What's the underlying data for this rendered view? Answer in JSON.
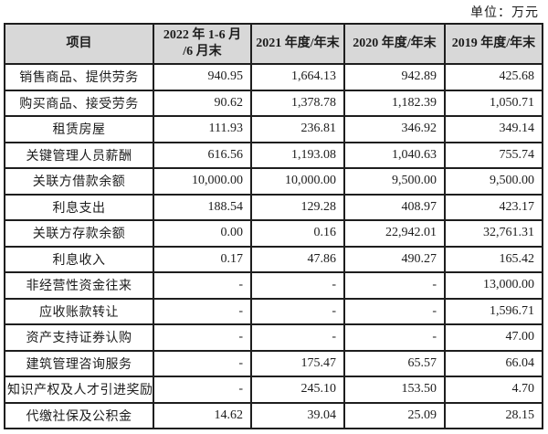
{
  "unit_label": "单位：万元",
  "colors": {
    "header_bg": "#d8d8d8",
    "border": "#1e1e1e",
    "text": "#1c1c1c"
  },
  "table": {
    "columns": [
      "项目",
      "2022 年 1-6 月\n/6 月末",
      "2021 年度/年末",
      "2020 年度/年末",
      "2019 年度/年末"
    ],
    "rows": [
      {
        "item": "销售商品、提供劳务",
        "values": [
          "940.95",
          "1,664.13",
          "942.89",
          "425.68"
        ]
      },
      {
        "item": "购买商品、接受劳务",
        "values": [
          "90.62",
          "1,378.78",
          "1,182.39",
          "1,050.71"
        ]
      },
      {
        "item": "租赁房屋",
        "values": [
          "111.93",
          "236.81",
          "346.92",
          "349.14"
        ]
      },
      {
        "item": "关键管理人员薪酬",
        "values": [
          "616.56",
          "1,193.08",
          "1,040.63",
          "755.74"
        ]
      },
      {
        "item": "关联方借款余额",
        "values": [
          "10,000.00",
          "10,000.00",
          "9,500.00",
          "9,500.00"
        ]
      },
      {
        "item": "利息支出",
        "values": [
          "188.54",
          "129.28",
          "408.97",
          "423.17"
        ]
      },
      {
        "item": "关联方存款余额",
        "values": [
          "0.00",
          "0.16",
          "22,942.01",
          "32,761.31"
        ]
      },
      {
        "item": "利息收入",
        "values": [
          "0.17",
          "47.86",
          "490.27",
          "165.42"
        ]
      },
      {
        "item": "非经营性资金往来",
        "values": [
          "-",
          "-",
          "-",
          "13,000.00"
        ]
      },
      {
        "item": "应收账款转让",
        "values": [
          "-",
          "-",
          "-",
          "1,596.71"
        ]
      },
      {
        "item": "资产支持证券认购",
        "values": [
          "-",
          "-",
          "-",
          "47.00"
        ]
      },
      {
        "item": "建筑管理咨询服务",
        "values": [
          "-",
          "175.47",
          "65.57",
          "66.04"
        ]
      },
      {
        "item": "知识产权及人才引进奖励",
        "values": [
          "-",
          "245.10",
          "153.50",
          "4.70"
        ]
      },
      {
        "item": "代缴社保及公积金",
        "values": [
          "14.62",
          "39.04",
          "25.09",
          "28.15"
        ]
      }
    ]
  }
}
